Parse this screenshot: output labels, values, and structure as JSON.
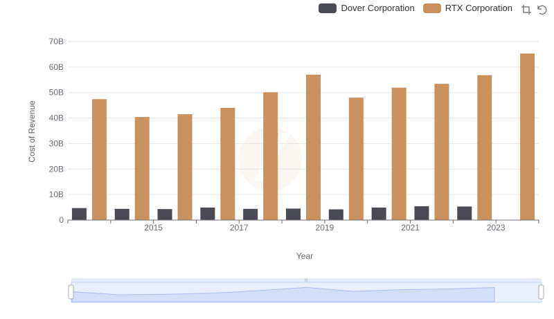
{
  "chart_data": {
    "type": "bar",
    "title": "",
    "xlabel": "Year",
    "ylabel": "Cost of Revenue",
    "ylim": [
      0,
      70000000000
    ],
    "yticks": [
      0,
      10000000000,
      20000000000,
      30000000000,
      40000000000,
      50000000000,
      60000000000,
      70000000000
    ],
    "ytick_labels": [
      "0",
      "10B",
      "20B",
      "30B",
      "40B",
      "50B",
      "60B",
      "70B"
    ],
    "categories": [
      "2014",
      "2015",
      "2016",
      "2017",
      "2018",
      "2019",
      "2020",
      "2021",
      "2022",
      "2023",
      "2024"
    ],
    "x_tick_labels": [
      "2015",
      "2017",
      "2019",
      "2021",
      "2023"
    ],
    "grid": true,
    "legend_position": "top-right",
    "series": [
      {
        "name": "Dover Corporation",
        "color": "#4a4a55",
        "values": [
          4700000000,
          4400000000,
          4300000000,
          4900000000,
          4400000000,
          4500000000,
          4200000000,
          4900000000,
          5400000000,
          5300000000,
          null
        ]
      },
      {
        "name": "RTX Corporation",
        "color": "#c8915d",
        "values": [
          47400000000,
          40400000000,
          41500000000,
          44000000000,
          50100000000,
          57000000000,
          48000000000,
          51900000000,
          53400000000,
          56800000000,
          65300000000
        ]
      }
    ]
  },
  "legend": {
    "items": [
      {
        "label": "Dover Corporation",
        "color": "#4a4a55"
      },
      {
        "label": "RTX Corporation",
        "color": "#c8915d"
      }
    ]
  },
  "toolbox": {
    "zoom_icon": "zoom-icon",
    "restore_icon": "restore-icon"
  },
  "colors": {
    "grid": "#e6e6e6",
    "axis": "#6e7079",
    "slider_fill": "#d6e0f9",
    "slider_border": "#c5d3f5",
    "slider_line": "#a9bff0"
  }
}
